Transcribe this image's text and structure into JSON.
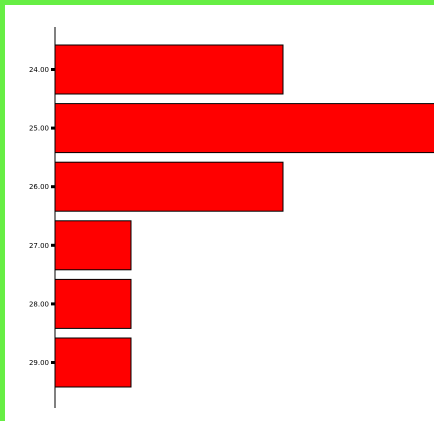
{
  "chart_data": {
    "type": "bar",
    "orientation": "horizontal",
    "categories": [
      "24.00",
      "25.00",
      "26.00",
      "27.00",
      "28.00",
      "29.00"
    ],
    "values": [
      3,
      5,
      3,
      1,
      1,
      1
    ],
    "xlim": [
      0,
      5
    ],
    "title": "",
    "xlabel": "",
    "ylabel": "",
    "grid": false,
    "legend": "none"
  },
  "colors": {
    "bar_fill": "#ff0000",
    "bar_stroke": "#000000",
    "frame_border": "#66ee44",
    "axis": "#000000"
  }
}
